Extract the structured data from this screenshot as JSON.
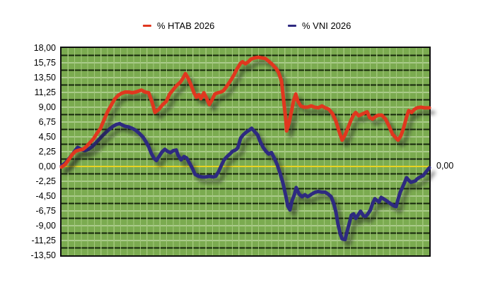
{
  "legend": [
    {
      "label": "% HTAB 2026",
      "color": "#e0371f"
    },
    {
      "label": "% VNI 2026",
      "color": "#2e2a80"
    }
  ],
  "right_axis_label": "0,00",
  "y_axis": {
    "ticks": [
      {
        "label": "18,00",
        "value": 18
      },
      {
        "label": "15,75",
        "value": 15.75
      },
      {
        "label": "13,50",
        "value": 13.5
      },
      {
        "label": "11,25",
        "value": 11.25
      },
      {
        "label": "9,00",
        "value": 9
      },
      {
        "label": "6,75",
        "value": 6.75
      },
      {
        "label": "4,50",
        "value": 4.5
      },
      {
        "label": "2,25",
        "value": 2.25
      },
      {
        "label": "0,00",
        "value": 0
      },
      {
        "label": "-2,25",
        "value": -2.25
      },
      {
        "label": "-4,50",
        "value": -4.5
      },
      {
        "label": "-6,75",
        "value": -6.75
      },
      {
        "label": "-9,00",
        "value": -9
      },
      {
        "label": "-11,25",
        "value": -11.25
      },
      {
        "label": "-13,50",
        "value": -13.5
      }
    ]
  },
  "chart_data": {
    "type": "line",
    "title": "",
    "xlabel": "",
    "ylabel": "%",
    "x_axis_note": "time axis, no tick labels shown; x given as 0-100 percent of period",
    "ylim": [
      -13.5,
      18
    ],
    "y_tick_step": 2.25,
    "grid": {
      "background": "#7bab50",
      "vertical_columns": 56,
      "vertical_line_color": "#a3c87c",
      "light_hline_color": "#d9e8c6",
      "dark_hline_color": "#16250b",
      "zero_line_color": "#e9d321",
      "border_color": "#0d0d0d"
    },
    "legend_position": "top",
    "zero_line_right_label": "0,00",
    "series": [
      {
        "name": "% VNI 2026",
        "color": "#2e2a80",
        "points": [
          [
            0,
            0.1
          ],
          [
            1,
            0.5
          ],
          [
            1.9,
            1.1
          ],
          [
            2.9,
            1.8
          ],
          [
            3.8,
            2.5
          ],
          [
            4.4,
            2.9
          ],
          [
            5,
            2.7
          ],
          [
            5.8,
            2.5
          ],
          [
            6.3,
            2.4
          ],
          [
            7.3,
            2.6
          ],
          [
            8.3,
            3
          ],
          [
            9.2,
            3.5
          ],
          [
            10.2,
            4.1
          ],
          [
            11.2,
            4.7
          ],
          [
            12.1,
            5.2
          ],
          [
            13.1,
            5.7
          ],
          [
            14,
            6.1
          ],
          [
            15,
            6.4
          ],
          [
            15.8,
            6.5
          ],
          [
            16.5,
            6.3
          ],
          [
            17.3,
            6.1
          ],
          [
            18.3,
            6
          ],
          [
            19.2,
            5.8
          ],
          [
            20.2,
            5.5
          ],
          [
            21.2,
            5
          ],
          [
            22.1,
            4.5
          ],
          [
            22.9,
            3.8
          ],
          [
            23.7,
            3
          ],
          [
            24.4,
            2
          ],
          [
            25.2,
            1.2
          ],
          [
            25.8,
            0.9
          ],
          [
            26.5,
            1.5
          ],
          [
            27.3,
            2.2
          ],
          [
            28.1,
            2.6
          ],
          [
            28.8,
            2.3
          ],
          [
            29.6,
            2.1
          ],
          [
            30.4,
            2.4
          ],
          [
            31.2,
            2.5
          ],
          [
            31.7,
            1.7
          ],
          [
            32.5,
            1
          ],
          [
            33.3,
            1.5
          ],
          [
            34,
            1.3
          ],
          [
            34.8,
            0.5
          ],
          [
            35.6,
            -0.3
          ],
          [
            36.3,
            -1.2
          ],
          [
            37.3,
            -1.5
          ],
          [
            38.3,
            -1.6
          ],
          [
            39.2,
            -1.6
          ],
          [
            40.2,
            -1.5
          ],
          [
            41.2,
            -1.6
          ],
          [
            41.9,
            -1.5
          ],
          [
            42.7,
            -0.8
          ],
          [
            43.5,
            0.2
          ],
          [
            44.2,
            1
          ],
          [
            45,
            1.5
          ],
          [
            45.8,
            1.9
          ],
          [
            46.5,
            2.3
          ],
          [
            47.3,
            2.5
          ],
          [
            47.9,
            2.8
          ],
          [
            48.7,
            4.3
          ],
          [
            49.4,
            4.8
          ],
          [
            50.2,
            5.2
          ],
          [
            51,
            5.5
          ],
          [
            51.7,
            5.8
          ],
          [
            52.5,
            5.3
          ],
          [
            53.3,
            4.8
          ],
          [
            54,
            3.8
          ],
          [
            54.8,
            2.9
          ],
          [
            55.6,
            2.3
          ],
          [
            56.3,
            1.9
          ],
          [
            57.1,
            2.1
          ],
          [
            57.9,
            1.2
          ],
          [
            58.7,
            0.2
          ],
          [
            59.4,
            -1
          ],
          [
            60.2,
            -2.5
          ],
          [
            61,
            -4.5
          ],
          [
            61.5,
            -6
          ],
          [
            62.1,
            -6.6
          ],
          [
            62.7,
            -5.2
          ],
          [
            63.3,
            -4.3
          ],
          [
            63.8,
            -3.2
          ],
          [
            64.6,
            -4.2
          ],
          [
            65.4,
            -4.6
          ],
          [
            66.2,
            -4.3
          ],
          [
            66.9,
            -4.6
          ],
          [
            67.5,
            -4.4
          ],
          [
            68.3,
            -4.1
          ],
          [
            69,
            -3.9
          ],
          [
            69.8,
            -3.8
          ],
          [
            70.8,
            -3.9
          ],
          [
            71.7,
            -3.9
          ],
          [
            72.5,
            -4.2
          ],
          [
            73.3,
            -4.6
          ],
          [
            74,
            -5.6
          ],
          [
            74.6,
            -6.9
          ],
          [
            75.2,
            -8.8
          ],
          [
            75.8,
            -10.3
          ],
          [
            76.3,
            -11
          ],
          [
            77.1,
            -11.1
          ],
          [
            77.7,
            -9.8
          ],
          [
            78.3,
            -8.5
          ],
          [
            78.8,
            -7.4
          ],
          [
            79.4,
            -7.2
          ],
          [
            80,
            -7.9
          ],
          [
            80.6,
            -7.4
          ],
          [
            81.3,
            -6.8
          ],
          [
            82.1,
            -7.5
          ],
          [
            82.7,
            -7.6
          ],
          [
            83.3,
            -7.2
          ],
          [
            84,
            -6.6
          ],
          [
            84.6,
            -5.6
          ],
          [
            85.2,
            -4.9
          ],
          [
            85.8,
            -5.2
          ],
          [
            86.3,
            -5.4
          ],
          [
            86.9,
            -4.7
          ],
          [
            87.5,
            -4.9
          ],
          [
            88.1,
            -5.1
          ],
          [
            88.8,
            -5.4
          ],
          [
            89.6,
            -5.7
          ],
          [
            90.4,
            -6
          ],
          [
            91,
            -6.1
          ],
          [
            91.5,
            -5
          ],
          [
            92.1,
            -3.9
          ],
          [
            92.7,
            -3.2
          ],
          [
            93.3,
            -2.4
          ],
          [
            93.8,
            -1.7
          ],
          [
            94.4,
            -2.1
          ],
          [
            95,
            -2.4
          ],
          [
            95.6,
            -2.3
          ],
          [
            96.2,
            -2.2
          ],
          [
            96.7,
            -1.9
          ],
          [
            97.5,
            -1.6
          ],
          [
            98.3,
            -1.4
          ],
          [
            99,
            -0.9
          ],
          [
            99.6,
            -0.5
          ],
          [
            100,
            -0.2
          ]
        ]
      },
      {
        "name": "% HTAB 2026",
        "color": "#e0371f",
        "points": [
          [
            0,
            -0.1
          ],
          [
            1,
            0.3
          ],
          [
            1.9,
            1
          ],
          [
            2.9,
            1.8
          ],
          [
            3.8,
            2.3
          ],
          [
            4.8,
            2.5
          ],
          [
            5.8,
            2.6
          ],
          [
            6.7,
            3
          ],
          [
            7.7,
            3.6
          ],
          [
            8.7,
            4.2
          ],
          [
            9.6,
            5
          ],
          [
            10.6,
            5.8
          ],
          [
            11.5,
            7
          ],
          [
            12.5,
            8.3
          ],
          [
            13.5,
            9.3
          ],
          [
            14.4,
            10.2
          ],
          [
            15.4,
            10.8
          ],
          [
            16.3,
            11.1
          ],
          [
            17.3,
            11.3
          ],
          [
            18.3,
            11.3
          ],
          [
            19.2,
            11.2
          ],
          [
            20.2,
            11.3
          ],
          [
            21.2,
            11.5
          ],
          [
            21.7,
            11.6
          ],
          [
            22.7,
            11.3
          ],
          [
            23.7,
            11.2
          ],
          [
            24.6,
            9.8
          ],
          [
            25.4,
            8.2
          ],
          [
            26.5,
            8.7
          ],
          [
            27.5,
            9.4
          ],
          [
            28.5,
            9.9
          ],
          [
            29.4,
            11
          ],
          [
            30.4,
            11.7
          ],
          [
            31.3,
            12.3
          ],
          [
            32.3,
            12.8
          ],
          [
            32.9,
            13.3
          ],
          [
            33.7,
            14.1
          ],
          [
            34.4,
            13.4
          ],
          [
            35.2,
            12.4
          ],
          [
            36,
            11.2
          ],
          [
            36.7,
            10.5
          ],
          [
            37.3,
            10.9
          ],
          [
            37.9,
            10.3
          ],
          [
            38.7,
            11.2
          ],
          [
            39.4,
            10.4
          ],
          [
            40.2,
            9.4
          ],
          [
            41,
            10.2
          ],
          [
            41.7,
            11
          ],
          [
            42.5,
            11.2
          ],
          [
            43.3,
            11.3
          ],
          [
            44,
            11.5
          ],
          [
            44.8,
            12.1
          ],
          [
            45.8,
            12.9
          ],
          [
            46.7,
            13.7
          ],
          [
            47.7,
            14.8
          ],
          [
            48.7,
            15.7
          ],
          [
            49.2,
            15.9
          ],
          [
            50,
            15.6
          ],
          [
            50.8,
            15.9
          ],
          [
            51.5,
            16.3
          ],
          [
            52.5,
            16.5
          ],
          [
            53.5,
            16.6
          ],
          [
            54.4,
            16.5
          ],
          [
            55.4,
            16.4
          ],
          [
            56.3,
            16
          ],
          [
            57.3,
            15.5
          ],
          [
            58.3,
            14.9
          ],
          [
            59,
            14.3
          ],
          [
            59.8,
            13
          ],
          [
            60.4,
            10
          ],
          [
            61,
            7
          ],
          [
            61.2,
            5.4
          ],
          [
            61.8,
            6.5
          ],
          [
            62.5,
            8.3
          ],
          [
            63.1,
            10
          ],
          [
            63.7,
            11
          ],
          [
            64.2,
            10
          ],
          [
            65,
            9.2
          ],
          [
            66,
            9
          ],
          [
            66.9,
            9
          ],
          [
            67.9,
            9.2
          ],
          [
            68.8,
            9
          ],
          [
            69.8,
            8.9
          ],
          [
            70.8,
            9.2
          ],
          [
            71.7,
            8.9
          ],
          [
            72.7,
            8.7
          ],
          [
            73.7,
            8
          ],
          [
            74.6,
            6.9
          ],
          [
            75.6,
            5.1
          ],
          [
            76.3,
            4
          ],
          [
            77.1,
            4.8
          ],
          [
            77.9,
            5.9
          ],
          [
            78.7,
            7
          ],
          [
            79.4,
            7.8
          ],
          [
            80,
            8.2
          ],
          [
            80.8,
            7.7
          ],
          [
            81.5,
            7.9
          ],
          [
            82.3,
            8.1
          ],
          [
            83.1,
            8.3
          ],
          [
            83.8,
            7.4
          ],
          [
            84.6,
            7.2
          ],
          [
            85.4,
            7.6
          ],
          [
            86.2,
            7.8
          ],
          [
            87.1,
            7.8
          ],
          [
            88.1,
            7.2
          ],
          [
            89,
            6.2
          ],
          [
            90,
            4.9
          ],
          [
            91,
            4.3
          ],
          [
            91.5,
            4
          ],
          [
            92.3,
            4.7
          ],
          [
            93.1,
            6
          ],
          [
            93.8,
            7.5
          ],
          [
            94.4,
            8.5
          ],
          [
            95.2,
            8.2
          ],
          [
            96,
            8.7
          ],
          [
            96.7,
            8.9
          ],
          [
            97.7,
            9
          ],
          [
            98.7,
            8.9
          ],
          [
            100,
            8.9
          ]
        ]
      }
    ]
  }
}
